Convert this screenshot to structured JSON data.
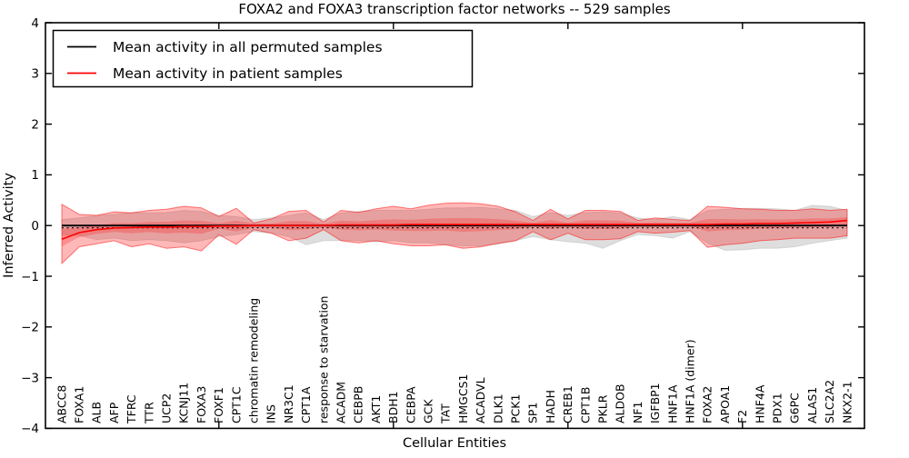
{
  "figure": {
    "title": "FOXA2 and FOXA3 transcription factor networks -- 529 samples",
    "xlabel": "Cellular Entities",
    "ylabel": "Inferred Activity"
  },
  "legend": {
    "entries": [
      {
        "label": "Mean activity in all permuted samples",
        "color": "#000000"
      },
      {
        "label": "Mean activity in patient samples",
        "color": "#ff0000"
      }
    ]
  },
  "axes": {
    "ylim": [
      -4,
      4
    ],
    "y_ticks": [
      4,
      3,
      2,
      1,
      0,
      -1,
      -2,
      -3,
      -4
    ],
    "x_major_tick_indices": [
      9,
      19,
      29,
      39
    ],
    "grid": false
  },
  "chart_data": {
    "type": "line",
    "title": "FOXA2 and FOXA3 transcription factor networks -- 529 samples",
    "xlabel": "Cellular Entities",
    "ylabel": "Inferred Activity",
    "ylim": [
      -4,
      4
    ],
    "legend_position": "upper left",
    "grid": false,
    "categories": [
      "ABCC8",
      "FOXA1",
      "ALB",
      "AFP",
      "TFRC",
      "TTR",
      "UCP2",
      "KCNJ11",
      "FOXA3",
      "FOXF1",
      "CPT1C",
      "chromatin remodeling",
      "INS",
      "NR3C1",
      "CPT1A",
      "response to starvation",
      "ACADM",
      "CEBPB",
      "AKT1",
      "BDH1",
      "CEBPA",
      "GCK",
      "TAT",
      "HMGCS1",
      "ACADVL",
      "DLK1",
      "PCK1",
      "SP1",
      "HADH",
      "CREB1",
      "CPT1B",
      "PKLR",
      "ALDOB",
      "NF1",
      "IGFBP1",
      "HNF1A",
      "HNF1A (dimer)",
      "FOXA2",
      "APOA1",
      "F2",
      "HNF4A",
      "PDX1",
      "G6PC",
      "ALAS1",
      "SLC2A2",
      "NKX2-1"
    ],
    "series": [
      {
        "name": "Mean activity in all permuted samples",
        "color": "#000000",
        "band_fill": "rgba(0,0,0,0.13)",
        "band_stroke": "rgba(0,0,0,0.10)",
        "values": [
          0,
          0,
          0,
          0,
          0,
          0,
          0,
          0,
          0,
          0,
          0,
          0,
          0,
          0,
          0,
          0,
          0,
          0,
          0,
          0,
          0,
          0,
          0,
          0,
          0,
          0,
          0,
          0,
          0,
          0,
          0,
          0,
          0,
          0,
          0,
          0,
          0,
          0,
          0,
          0,
          0,
          0,
          0,
          0,
          0,
          0
        ],
        "band_upper": [
          0.12,
          0.15,
          0.2,
          0.22,
          0.26,
          0.25,
          0.26,
          0.3,
          0.28,
          0.2,
          0.18,
          0.12,
          0.15,
          0.2,
          0.25,
          0.12,
          0.25,
          0.28,
          0.3,
          0.3,
          0.3,
          0.32,
          0.35,
          0.35,
          0.36,
          0.33,
          0.3,
          0.18,
          0.26,
          0.2,
          0.26,
          0.27,
          0.25,
          0.15,
          0.12,
          0.18,
          0.12,
          0.3,
          0.32,
          0.34,
          0.34,
          0.33,
          0.3,
          0.4,
          0.38,
          0.3
        ],
        "band_lower": [
          -0.18,
          -0.2,
          -0.28,
          -0.25,
          -0.3,
          -0.28,
          -0.3,
          -0.34,
          -0.3,
          -0.22,
          -0.18,
          -0.12,
          -0.15,
          -0.22,
          -0.38,
          -0.3,
          -0.3,
          -0.3,
          -0.32,
          -0.3,
          -0.34,
          -0.34,
          -0.38,
          -0.4,
          -0.4,
          -0.37,
          -0.3,
          -0.22,
          -0.28,
          -0.32,
          -0.35,
          -0.45,
          -0.3,
          -0.18,
          -0.2,
          -0.25,
          -0.12,
          -0.35,
          -0.49,
          -0.48,
          -0.45,
          -0.45,
          -0.42,
          -0.35,
          -0.3,
          -0.25
        ]
      },
      {
        "name": "Mean activity in patient samples",
        "color": "#ff0000",
        "band_fill": "rgba(255,0,0,0.28)",
        "band_stroke": "rgba(255,0,0,0.50)",
        "inner_band_fill": "rgba(255,0,0,0.22)",
        "values": [
          -0.27,
          -0.14,
          -0.08,
          -0.05,
          -0.04,
          -0.03,
          -0.03,
          -0.02,
          -0.02,
          -0.01,
          -0.01,
          0,
          0,
          0,
          0,
          0,
          0.01,
          0.01,
          0.01,
          0.01,
          0.02,
          0.02,
          0.02,
          0.02,
          0.02,
          0.02,
          0.02,
          0.02,
          0.02,
          0.02,
          0.02,
          0.02,
          0.02,
          0.02,
          0.02,
          0.02,
          0.02,
          0.02,
          0.03,
          0.03,
          0.04,
          0.04,
          0.05,
          0.06,
          0.07,
          0.1
        ],
        "band_upper": [
          0.42,
          0.22,
          0.2,
          0.27,
          0.25,
          0.3,
          0.32,
          0.38,
          0.35,
          0.18,
          0.34,
          0.05,
          0.13,
          0.28,
          0.3,
          0.07,
          0.3,
          0.26,
          0.33,
          0.38,
          0.33,
          0.4,
          0.44,
          0.45,
          0.43,
          0.38,
          0.27,
          0.1,
          0.32,
          0.13,
          0.3,
          0.3,
          0.28,
          0.1,
          0.15,
          0.12,
          0.1,
          0.38,
          0.36,
          0.33,
          0.32,
          0.3,
          0.3,
          0.33,
          0.3,
          0.32
        ],
        "band_lower": [
          -0.75,
          -0.42,
          -0.36,
          -0.3,
          -0.42,
          -0.36,
          -0.45,
          -0.42,
          -0.5,
          -0.18,
          -0.37,
          -0.08,
          -0.15,
          -0.3,
          -0.25,
          -0.08,
          -0.3,
          -0.34,
          -0.3,
          -0.36,
          -0.4,
          -0.4,
          -0.38,
          -0.45,
          -0.42,
          -0.35,
          -0.3,
          -0.12,
          -0.28,
          -0.15,
          -0.28,
          -0.28,
          -0.26,
          -0.12,
          -0.15,
          -0.13,
          -0.1,
          -0.43,
          -0.38,
          -0.35,
          -0.3,
          -0.28,
          -0.25,
          -0.25,
          -0.25,
          -0.2
        ]
      }
    ]
  }
}
